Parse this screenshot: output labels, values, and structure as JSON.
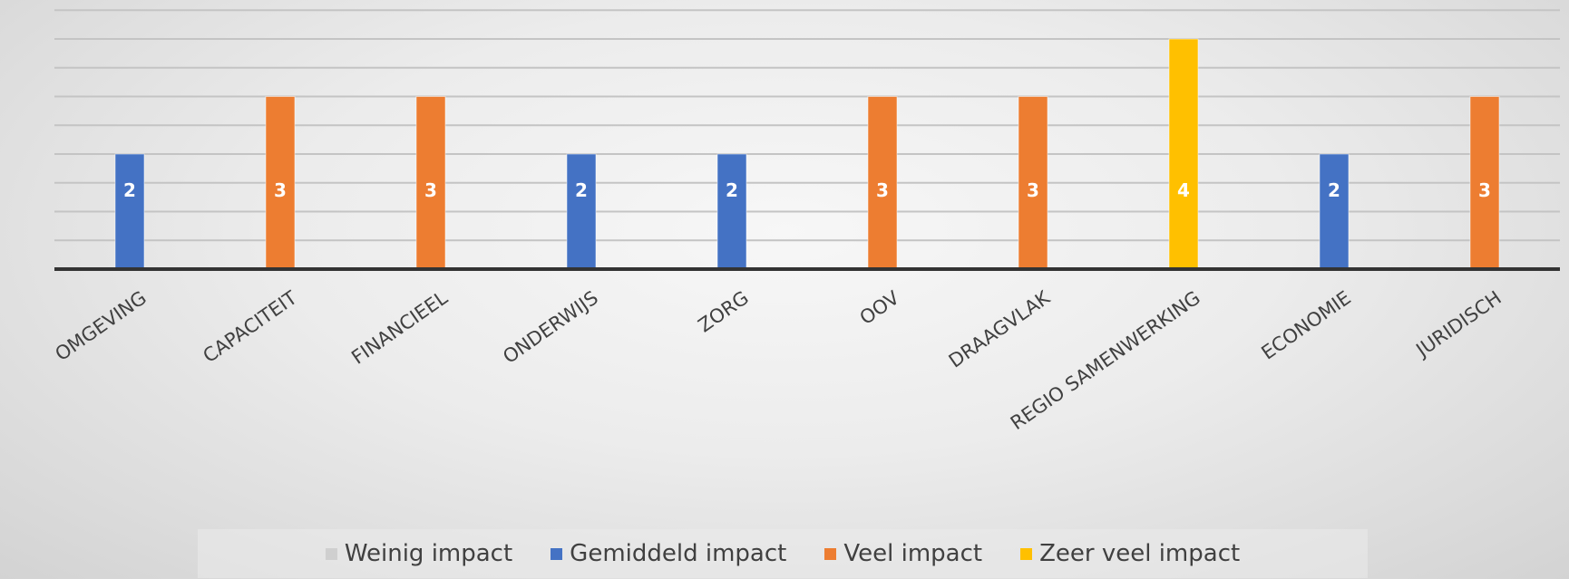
{
  "chart_data": {
    "type": "bar",
    "categories": [
      "OMGEVING",
      "CAPACITEIT",
      "FINANCIEEL",
      "ONDERWIJS",
      "ZORG",
      "OOV",
      "DRAAGVLAK",
      "REGIO SAMENWERKING",
      "ECONOMIE",
      "JURIDISCH"
    ],
    "values": [
      2,
      3,
      3,
      2,
      2,
      3,
      3,
      4,
      2,
      3
    ],
    "impact_levels": [
      "Gemiddeld impact",
      "Veel impact",
      "Veel impact",
      "Gemiddeld impact",
      "Gemiddeld impact",
      "Veel impact",
      "Veel impact",
      "Zeer veel impact",
      "Gemiddeld impact",
      "Veel impact"
    ],
    "data_labels": [
      "2",
      "3",
      "3",
      "2",
      "2",
      "3",
      "3",
      "4",
      "2",
      "3"
    ],
    "legend": [
      {
        "name": "Weinig impact",
        "color": "#cfcfcf"
      },
      {
        "name": "Gemiddeld impact",
        "color": "#4472c4"
      },
      {
        "name": "Veel impact",
        "color": "#ed7d31"
      },
      {
        "name": "Zeer veel impact",
        "color": "#ffc000"
      }
    ],
    "legend_position": "bottom",
    "title": "",
    "xlabel": "",
    "ylabel": "",
    "ylim": [
      0,
      4.5
    ],
    "grid": true,
    "gridline_step": 0.5
  }
}
